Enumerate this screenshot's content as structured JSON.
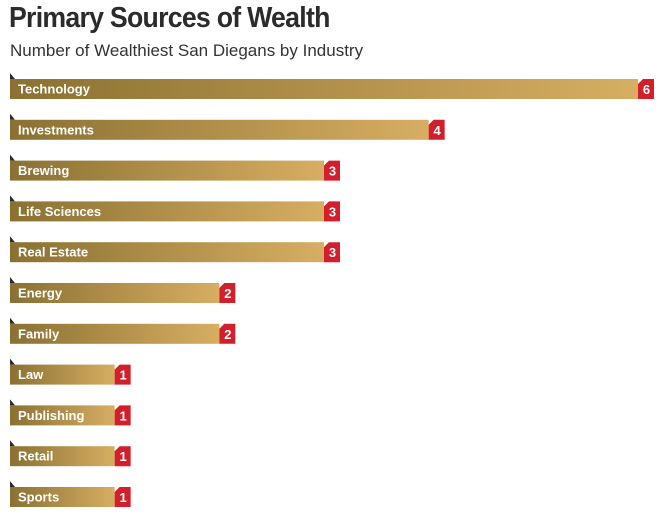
{
  "chart_data": {
    "type": "bar",
    "title": "Primary Sources of Wealth",
    "subtitle": "Number of Wealthiest San Diegans by Industry",
    "categories": [
      "Technology",
      "Investments",
      "Brewing",
      "Life Sciences",
      "Real Estate",
      "Energy",
      "Family",
      "Law",
      "Publishing",
      "Retail",
      "Sports"
    ],
    "values": [
      6,
      4,
      3,
      3,
      3,
      2,
      2,
      1,
      1,
      1,
      1
    ],
    "xlim": [
      0,
      6
    ],
    "orientation": "horizontal",
    "grid": false,
    "bar_color_start": "#8a7132",
    "bar_color_end": "#d7ae62",
    "badge_color": "#d31f2b",
    "text_color": "#ffffff"
  }
}
